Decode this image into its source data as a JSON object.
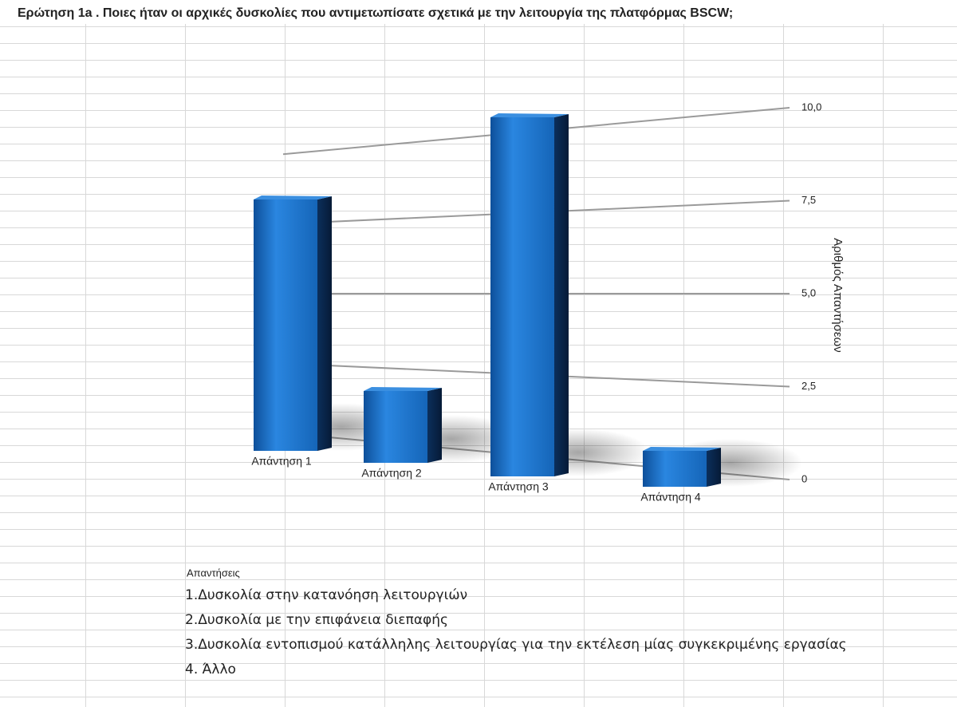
{
  "chart_data": {
    "type": "bar3d",
    "title": "Ερώτηση 1a . Ποιες ήταν οι αρχικές δυσκολίες που αντιμετωπίσατε σχετικά με την λειτουργία της πλατφόρμας BSCW;",
    "y_label": "Αριθμός Απαντήσεων",
    "categories": [
      "Απάντηση 1",
      "Απάντηση 2",
      "Απάντηση 3",
      "Απάντηση 4"
    ],
    "values": [
      7,
      2,
      10,
      1
    ],
    "color": "#1f74cc",
    "ylim": [
      0,
      10
    ],
    "yticks": [
      0,
      {
        "value": 2.5,
        "label": "2,5"
      },
      {
        "value": 5,
        "label": "5,0"
      },
      {
        "value": 7.5,
        "label": "7,5"
      },
      {
        "value": 10,
        "label": "10,0"
      }
    ],
    "grid": true,
    "notes_title": "Απαντήσεις",
    "notes": [
      "1.Δυσκολία στην κατανόηση λειτουργιών",
      "2.Δυσκολία με την επιφάνεια διεπαφής",
      "3.Δυσκολία εντοπισμού κατάλληλης λειτουργίας για την εκτέλεση μίας συγκεκριμένης εργασίας",
      "4. Άλλο"
    ]
  }
}
